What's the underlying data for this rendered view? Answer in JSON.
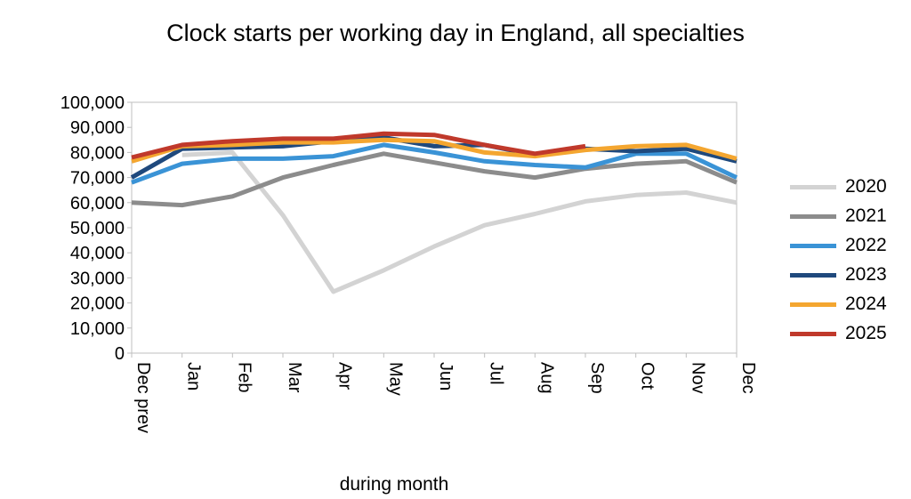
{
  "chart_data": {
    "type": "line",
    "title": "Clock starts per working day in England, all specialties",
    "xlabel": "during month",
    "ylabel": "",
    "categories": [
      "Dec prev",
      "Jan",
      "Feb",
      "Mar",
      "Apr",
      "May",
      "Jun",
      "Jul",
      "Aug",
      "Sep",
      "Oct",
      "Nov",
      "Dec"
    ],
    "ylim": [
      0,
      100000
    ],
    "yticks": [
      "0",
      "10,000",
      "20,000",
      "30,000",
      "40,000",
      "50,000",
      "60,000",
      "70,000",
      "80,000",
      "90,000",
      "100,000"
    ],
    "grid": false,
    "legend_position": "right",
    "series": [
      {
        "name": "2020",
        "color": "#d3d3d3",
        "values": [
          null,
          79000,
          80000,
          55000,
          24500,
          33000,
          42500,
          51000,
          55500,
          60500,
          63000,
          64000,
          60000
        ]
      },
      {
        "name": "2021",
        "color": "#8c8c8c",
        "values": [
          60000,
          59000,
          62500,
          70000,
          75000,
          79500,
          76000,
          72500,
          70000,
          73500,
          75500,
          76500,
          68000
        ]
      },
      {
        "name": "2022",
        "color": "#3a93d6",
        "values": [
          68000,
          75500,
          77500,
          77500,
          78500,
          83000,
          80000,
          76500,
          75000,
          74000,
          79500,
          79500,
          70000
        ]
      },
      {
        "name": "2023",
        "color": "#1f497d",
        "values": [
          70000,
          81500,
          82000,
          82500,
          84500,
          86000,
          82500,
          83000,
          79000,
          81500,
          80500,
          81500,
          76500
        ]
      },
      {
        "name": "2024",
        "color": "#f4a630",
        "values": [
          76500,
          82500,
          83000,
          84000,
          84000,
          85000,
          84500,
          80000,
          78500,
          81000,
          82500,
          83000,
          77500
        ]
      },
      {
        "name": "2025",
        "color": "#c0392b",
        "values": [
          78000,
          83000,
          84500,
          85500,
          85500,
          87500,
          87000,
          83000,
          79500,
          82500,
          null,
          null,
          null
        ]
      }
    ]
  }
}
